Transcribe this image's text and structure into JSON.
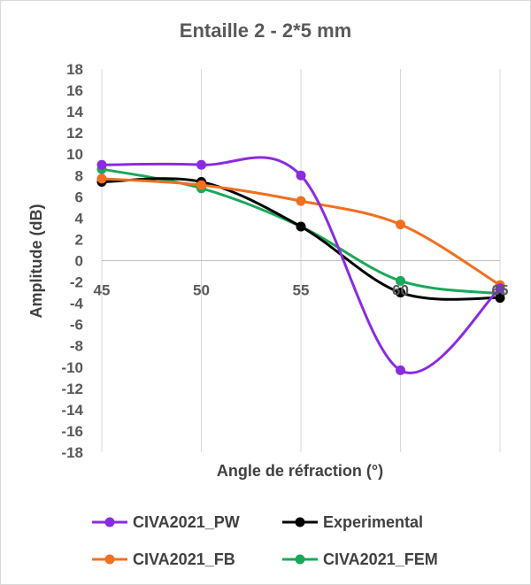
{
  "chart_data": {
    "type": "line",
    "title": "Entaille 2 - 2*5 mm",
    "xlabel": "Angle de réfraction (°)",
    "ylabel": "Amplitude (dB)",
    "x": [
      45,
      50,
      55,
      60,
      65
    ],
    "x_tick_labels": [
      "45",
      "50",
      "55",
      "60",
      "65"
    ],
    "ylim": [
      -18,
      18
    ],
    "y_tick_labels": [
      "18",
      "16",
      "14",
      "12",
      "10",
      "8",
      "6",
      "4",
      "2",
      "0",
      "-2",
      "-4",
      "-6",
      "-8",
      "-10",
      "-12",
      "-14",
      "-16",
      "-18"
    ],
    "grid": "vertical",
    "legend_position": "bottom",
    "series": [
      {
        "name": "CIVA2021_PW",
        "color": "#8a2be2",
        "values": [
          9.0,
          9.0,
          8.0,
          -10.3,
          -2.6
        ]
      },
      {
        "name": "Experimental",
        "color": "#000000",
        "values": [
          7.4,
          7.4,
          3.2,
          -3.0,
          -3.5
        ]
      },
      {
        "name": "CIVA2021_FB",
        "color": "#f07020",
        "values": [
          7.7,
          7.1,
          5.6,
          3.4,
          -2.3
        ]
      },
      {
        "name": "CIVA2021_FEM",
        "color": "#1aa85a",
        "values": [
          8.6,
          6.8,
          3.2,
          -1.9,
          -3.1
        ]
      }
    ]
  }
}
